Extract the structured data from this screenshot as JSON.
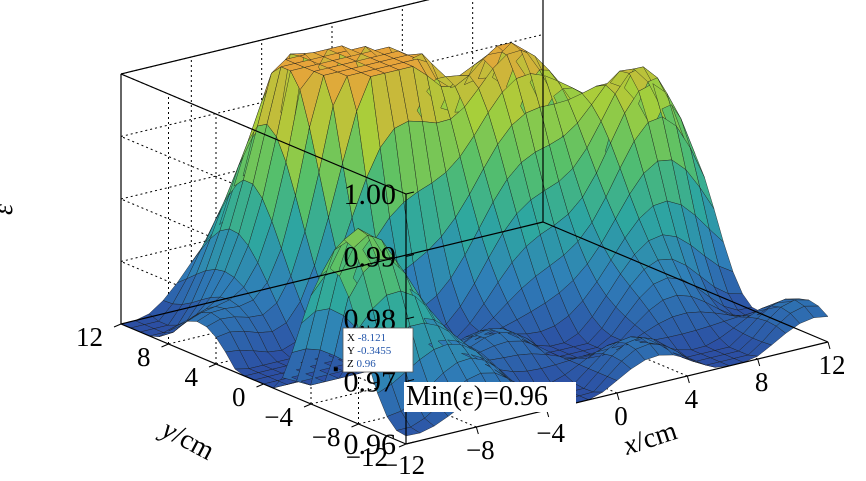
{
  "chart_data": {
    "type": "surface",
    "title": "",
    "zlabel": "ε",
    "xlabel": {
      "var": "x",
      "unit": "/cm"
    },
    "ylabel": {
      "var": "y",
      "unit": "/cm"
    },
    "xlim": [
      -12,
      12
    ],
    "ylim": [
      -12,
      12
    ],
    "zlim": [
      0.96,
      1.0
    ],
    "x_ticks": [
      "−8",
      "−4",
      "0",
      "4",
      "8",
      "12"
    ],
    "y_ticks": [
      "12",
      "8",
      "4",
      "0",
      "−4",
      "−8",
      "−12"
    ],
    "z_ticks": [
      "0.96",
      "0.97",
      "0.98",
      "0.99",
      "1.00"
    ],
    "grid": true,
    "colormap": [
      "#2c4fa3",
      "#2f7fb8",
      "#2ea7a0",
      "#56c06a",
      "#a8cf3a",
      "#e7a43a"
    ],
    "peaks": [
      {
        "x": -2,
        "y": 6,
        "z": 1.0
      },
      {
        "x": 4,
        "y": 4,
        "z": 0.997
      },
      {
        "x": 9,
        "y": 0,
        "z": 0.994
      },
      {
        "x": -10,
        "y": -6,
        "z": 0.986
      },
      {
        "x": -4,
        "y": 8,
        "z": 0.995
      }
    ],
    "minimum": {
      "x": -8.121,
      "y": -0.3455,
      "z": 0.96
    },
    "datatip": {
      "x_label": "X",
      "x_value": "-8.121",
      "y_label": "Y",
      "y_value": "-0.3455",
      "z_label": "Z",
      "z_value": "0.96"
    },
    "annotation": "Min(ε)=0.96"
  }
}
